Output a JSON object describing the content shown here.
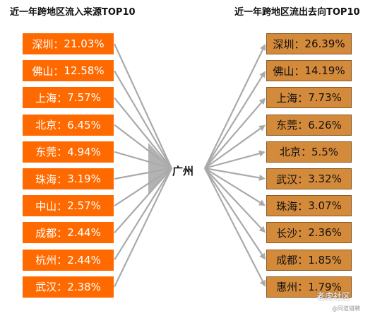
{
  "left_title": "近一年跨地区流入来源TOP10",
  "right_title": "近一年跨地区流出去向TOP10",
  "center": "广州",
  "inflow": [
    {
      "city": "深圳",
      "value": "21.03%"
    },
    {
      "city": "佛山",
      "value": "12.58%"
    },
    {
      "city": "上海",
      "value": "7.57%"
    },
    {
      "city": "北京",
      "value": "6.45%"
    },
    {
      "city": "东莞",
      "value": "4.94%"
    },
    {
      "city": "珠海",
      "value": "3.19%"
    },
    {
      "city": "中山",
      "value": "2.57%"
    },
    {
      "city": "成都",
      "value": "2.44%"
    },
    {
      "city": "杭州",
      "value": "2.44%"
    },
    {
      "city": "武汉",
      "value": "2.38%"
    }
  ],
  "outflow": [
    {
      "city": "深圳",
      "value": "26.39%"
    },
    {
      "city": "佛山",
      "value": "14.19%"
    },
    {
      "city": "上海",
      "value": "7.73%"
    },
    {
      "city": "东莞",
      "value": "6.26%"
    },
    {
      "city": "北京",
      "value": "5.5%"
    },
    {
      "city": "武汉",
      "value": "3.32%"
    },
    {
      "city": "珠海",
      "value": "3.07%"
    },
    {
      "city": "长沙",
      "value": "2.36%"
    },
    {
      "city": "成都",
      "value": "1.85%"
    },
    {
      "city": "惠州",
      "value": "1.79%"
    }
  ],
  "colors": {
    "inflow_box": "#ff6a00",
    "outflow_box": "#d48a3b",
    "arrow": "#aaaaaa"
  },
  "watermark": "老虎社区",
  "watermark_sub": "@同道猎聘"
}
